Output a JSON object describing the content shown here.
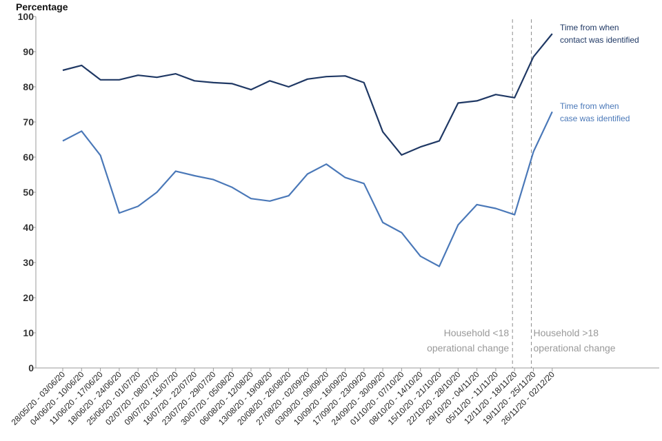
{
  "chart_data": {
    "type": "line",
    "ylabel": "Percentage",
    "xlabel": "",
    "ylim": [
      0,
      100
    ],
    "yticks": [
      0,
      10,
      20,
      30,
      40,
      50,
      60,
      70,
      80,
      90,
      100
    ],
    "grid": false,
    "categories": [
      "28/05/20 - 03/06/20",
      "04/06/20 - 10/06/20",
      "11/06/20 - 17/06/20",
      "18/06/20 - 24/06/20",
      "25/06/20 - 01/07/20",
      "02/07/20 - 08/07/20",
      "09/07/20 - 15/07/20",
      "16/07/20 - 22/07/20",
      "23/07/20 - 29/07/20",
      "30/07/20 - 05/08/20",
      "06/08/20 - 12/08/20",
      "13/08/20 - 19/08/20",
      "20/08/20 - 26/08/20",
      "27/08/20 - 02/09/20",
      "03/09/20 - 09/09/20",
      "10/09/20 - 16/09/20",
      "17/09/20 - 23/09/20",
      "24/09/20 - 30/09/20",
      "01/10/20 - 07/10/20",
      "08/10/20 - 14/10/20",
      "15/10/20 - 21/10/20",
      "22/10/20 - 28/10/20",
      "29/10/20 - 04/11/20",
      "05/11/20 - 11/11/20",
      "12/11/20 - 18/11/20",
      "19/11/20 - 25/11/20",
      "26/11/20 - 02/12/20"
    ],
    "series": [
      {
        "name": "Time from when contact was identified",
        "label_lines": [
          "Time from when",
          " contact was identified"
        ],
        "color": "#1f3864",
        "values": [
          84.7,
          86.1,
          82.0,
          82.0,
          83.3,
          82.7,
          83.7,
          81.7,
          81.2,
          80.9,
          79.2,
          81.7,
          80.0,
          82.2,
          82.9,
          83.1,
          81.2,
          67.2,
          60.6,
          62.9,
          64.6,
          75.4,
          76.0,
          77.8,
          76.9,
          88.5,
          95.1
        ]
      },
      {
        "name": "Time from when case was identified",
        "label_lines": [
          "Time from when",
          " case was identified"
        ],
        "color": "#4a78b8",
        "values": [
          64.6,
          67.4,
          60.5,
          44.1,
          46.0,
          50.0,
          56.0,
          54.7,
          53.6,
          51.4,
          48.2,
          47.5,
          49.0,
          55.2,
          58.0,
          54.2,
          52.5,
          41.4,
          38.5,
          31.8,
          28.9,
          40.7,
          46.5,
          45.4,
          43.6,
          61.5,
          72.9
        ]
      }
    ],
    "annotations": [
      {
        "after_category_index": 24,
        "lines": [
          "Household <18",
          "operational change"
        ],
        "align": "right"
      },
      {
        "after_category_index": 25,
        "lines": [
          "Household >18",
          "operational change"
        ],
        "align": "left"
      }
    ]
  }
}
